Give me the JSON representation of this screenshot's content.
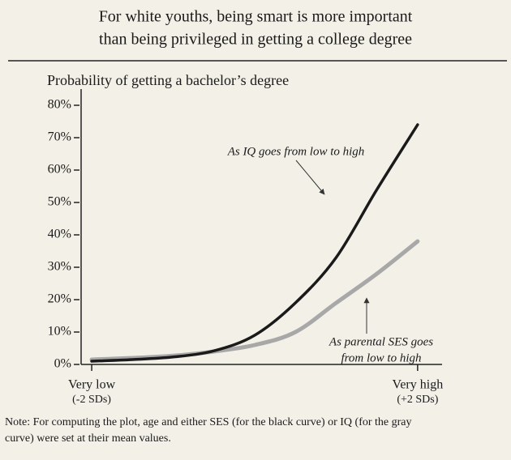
{
  "chart_data": {
    "type": "line",
    "title": [
      "For white youths, being smart is more important",
      "than being privileged in getting a college degree"
    ],
    "y_label": "Probability of getting a bachelor’s degree",
    "x": [
      -2,
      -1.5,
      -1,
      -0.5,
      0,
      0.5,
      1,
      1.5,
      2
    ],
    "xlim": [
      -2.13,
      2.3
    ],
    "xticks": [
      {
        "value": -2,
        "label": "Very low"
      },
      {
        "value": 2,
        "label": "Very high"
      }
    ],
    "xtick_sublabels": [
      "(-2 SDs)",
      "(+2 SDs)"
    ],
    "ylim": [
      0,
      85
    ],
    "yticks": [
      {
        "value": 0,
        "label": "0%"
      },
      {
        "value": 10,
        "label": "10%"
      },
      {
        "value": 20,
        "label": "20%"
      },
      {
        "value": 30,
        "label": "30%"
      },
      {
        "value": 40,
        "label": "40%"
      },
      {
        "value": 50,
        "label": "50%"
      },
      {
        "value": 60,
        "label": "60%"
      },
      {
        "value": 70,
        "label": "70%"
      },
      {
        "value": 80,
        "label": "80%"
      }
    ],
    "series": [
      {
        "name": "As IQ goes from low to high",
        "color": "#1a1a1a",
        "values": [
          1,
          1.5,
          2.3,
          4.2,
          9,
          19,
          33,
          54,
          74
        ]
      },
      {
        "name": [
          "As parental SES goes",
          "from low to high"
        ],
        "color": "#a8a8a8",
        "values": [
          1.5,
          2,
          2.7,
          4,
          6,
          10,
          19,
          28,
          38
        ]
      }
    ],
    "note": [
      "Note: For computing the plot, age and either SES (for the black curve) or IQ (for the gray",
      "curve) were set at their mean values."
    ]
  }
}
